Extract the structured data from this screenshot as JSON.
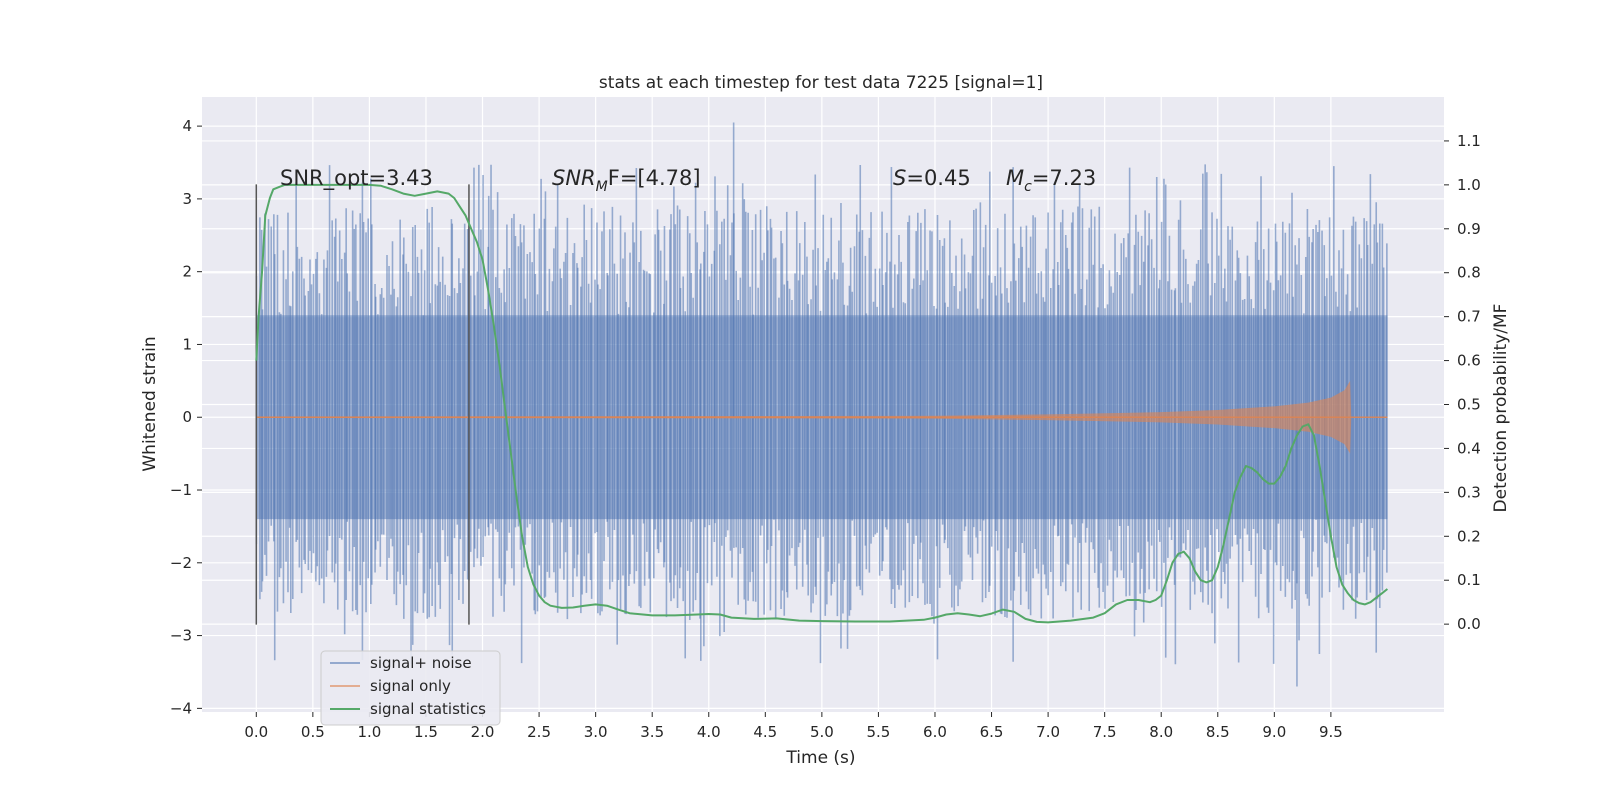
{
  "chart_data": {
    "type": "line",
    "title": "stats at each timestep for test data 7225 [signal=1]",
    "xlabel": "Time (s)",
    "ylabel": "Whitened strain",
    "ylabel_right": "Detection probability/MF",
    "xlim": [
      -0.48,
      10.5
    ],
    "ylim": [
      -4.05,
      4.4
    ],
    "ylim_right": [
      -0.2,
      1.2
    ],
    "xticks": [
      0.0,
      0.5,
      1.0,
      1.5,
      2.0,
      2.5,
      3.0,
      3.5,
      4.0,
      4.5,
      5.0,
      5.5,
      6.0,
      6.5,
      7.0,
      7.5,
      8.0,
      8.5,
      9.0,
      9.5
    ],
    "xtick_labels": [
      "0.0",
      "0.5",
      "1.0",
      "1.5",
      "2.0",
      "2.5",
      "3.0",
      "3.5",
      "4.0",
      "4.5",
      "5.0",
      "5.5",
      "6.0",
      "6.5",
      "7.0",
      "7.5",
      "8.0",
      "8.5",
      "9.0",
      "9.5"
    ],
    "yticks": [
      -4,
      -3,
      -2,
      -1,
      0,
      1,
      2,
      3,
      4
    ],
    "ytick_labels": [
      "−4",
      "−3",
      "−2",
      "−1",
      "0",
      "1",
      "2",
      "3",
      "4"
    ],
    "yticks_right": [
      0.0,
      0.1,
      0.2,
      0.3,
      0.4,
      0.5,
      0.6,
      0.7,
      0.8,
      0.9,
      1.0,
      1.1
    ],
    "ytick_labels_right": [
      "0.0",
      "0.1",
      "0.2",
      "0.3",
      "0.4",
      "0.5",
      "0.6",
      "0.7",
      "0.8",
      "0.9",
      "1.0",
      "1.1"
    ],
    "grid": true,
    "legend_position": "lower-left",
    "background": "#eaeaf2",
    "series": [
      {
        "name": "signal+ noise",
        "color": "#4c72b0",
        "opacity": 0.5,
        "style": "dense-noise",
        "x_range": [
          0.0,
          10.0
        ],
        "core_amplitude": 1.4,
        "typical_peak": 2.6,
        "max_value": 4.05,
        "min_value": -3.7
      },
      {
        "name": "signal only",
        "color": "#dd8452",
        "opacity": 0.6,
        "style": "chirp-envelope",
        "envelope_x": [
          0.0,
          6.0,
          7.0,
          8.0,
          8.5,
          9.0,
          9.3,
          9.5,
          9.62,
          9.67,
          9.68
        ],
        "envelope_y": [
          0.01,
          0.02,
          0.04,
          0.07,
          0.1,
          0.15,
          0.2,
          0.27,
          0.37,
          0.5,
          0.0
        ]
      },
      {
        "name": "signal statistics",
        "color": "#55a868",
        "axis": "right",
        "x": [
          0.0,
          0.02,
          0.05,
          0.08,
          0.12,
          0.15,
          0.2,
          0.25,
          0.3,
          0.4,
          0.5,
          0.7,
          0.9,
          1.0,
          1.1,
          1.2,
          1.3,
          1.4,
          1.5,
          1.6,
          1.7,
          1.75,
          1.8,
          1.85,
          1.9,
          1.95,
          2.0,
          2.05,
          2.1,
          2.15,
          2.2,
          2.25,
          2.3,
          2.35,
          2.4,
          2.45,
          2.5,
          2.55,
          2.6,
          2.7,
          2.8,
          2.9,
          3.0,
          3.1,
          3.2,
          3.3,
          3.5,
          3.7,
          3.9,
          4.0,
          4.1,
          4.2,
          4.4,
          4.6,
          4.8,
          5.0,
          5.3,
          5.6,
          5.9,
          6.0,
          6.1,
          6.2,
          6.3,
          6.4,
          6.5,
          6.6,
          6.7,
          6.8,
          6.9,
          7.0,
          7.2,
          7.4,
          7.5,
          7.6,
          7.7,
          7.8,
          7.9,
          7.95,
          8.0,
          8.05,
          8.1,
          8.15,
          8.2,
          8.25,
          8.3,
          8.35,
          8.4,
          8.45,
          8.5,
          8.55,
          8.6,
          8.65,
          8.7,
          8.75,
          8.8,
          8.85,
          8.9,
          8.95,
          9.0,
          9.05,
          9.1,
          9.15,
          9.2,
          9.25,
          9.3,
          9.35,
          9.4,
          9.45,
          9.5,
          9.55,
          9.6,
          9.65,
          9.7,
          9.75,
          9.8,
          9.85,
          9.9,
          9.95,
          10.0
        ],
        "values": [
          0.6,
          0.7,
          0.8,
          0.93,
          0.97,
          0.99,
          0.995,
          1.0,
          1.0,
          1.0,
          1.0,
          1.0,
          1.0,
          1.0,
          0.998,
          0.99,
          0.98,
          0.975,
          0.98,
          0.985,
          0.98,
          0.97,
          0.95,
          0.93,
          0.9,
          0.87,
          0.83,
          0.76,
          0.68,
          0.59,
          0.49,
          0.39,
          0.29,
          0.2,
          0.13,
          0.09,
          0.065,
          0.05,
          0.042,
          0.037,
          0.038,
          0.042,
          0.045,
          0.042,
          0.033,
          0.025,
          0.02,
          0.02,
          0.022,
          0.023,
          0.022,
          0.015,
          0.012,
          0.013,
          0.008,
          0.007,
          0.006,
          0.006,
          0.01,
          0.015,
          0.022,
          0.025,
          0.022,
          0.018,
          0.024,
          0.033,
          0.028,
          0.012,
          0.005,
          0.004,
          0.008,
          0.015,
          0.025,
          0.045,
          0.055,
          0.055,
          0.05,
          0.055,
          0.065,
          0.1,
          0.14,
          0.16,
          0.165,
          0.15,
          0.12,
          0.1,
          0.095,
          0.1,
          0.13,
          0.18,
          0.24,
          0.3,
          0.335,
          0.36,
          0.355,
          0.345,
          0.33,
          0.32,
          0.32,
          0.335,
          0.36,
          0.4,
          0.43,
          0.45,
          0.455,
          0.43,
          0.36,
          0.28,
          0.2,
          0.13,
          0.09,
          0.07,
          0.055,
          0.048,
          0.045,
          0.05,
          0.06,
          0.07,
          0.08
        ]
      }
    ],
    "vertical_markers": [
      {
        "x": 0.0,
        "y_top": 3.2,
        "y_bottom": -2.85
      },
      {
        "x": 1.88,
        "y_top": 3.2,
        "y_bottom": -2.85
      }
    ],
    "annotations": {
      "snr_opt": "SNR_opt=3.43",
      "snr_mf_main": "SNR",
      "snr_mf_sub": "M",
      "snr_mf_rest": "F=[4.78]",
      "s_var": "S",
      "s_value": "=0.45",
      "mc_main": "M",
      "mc_sub": "c",
      "mc_value": "=7.23"
    }
  }
}
